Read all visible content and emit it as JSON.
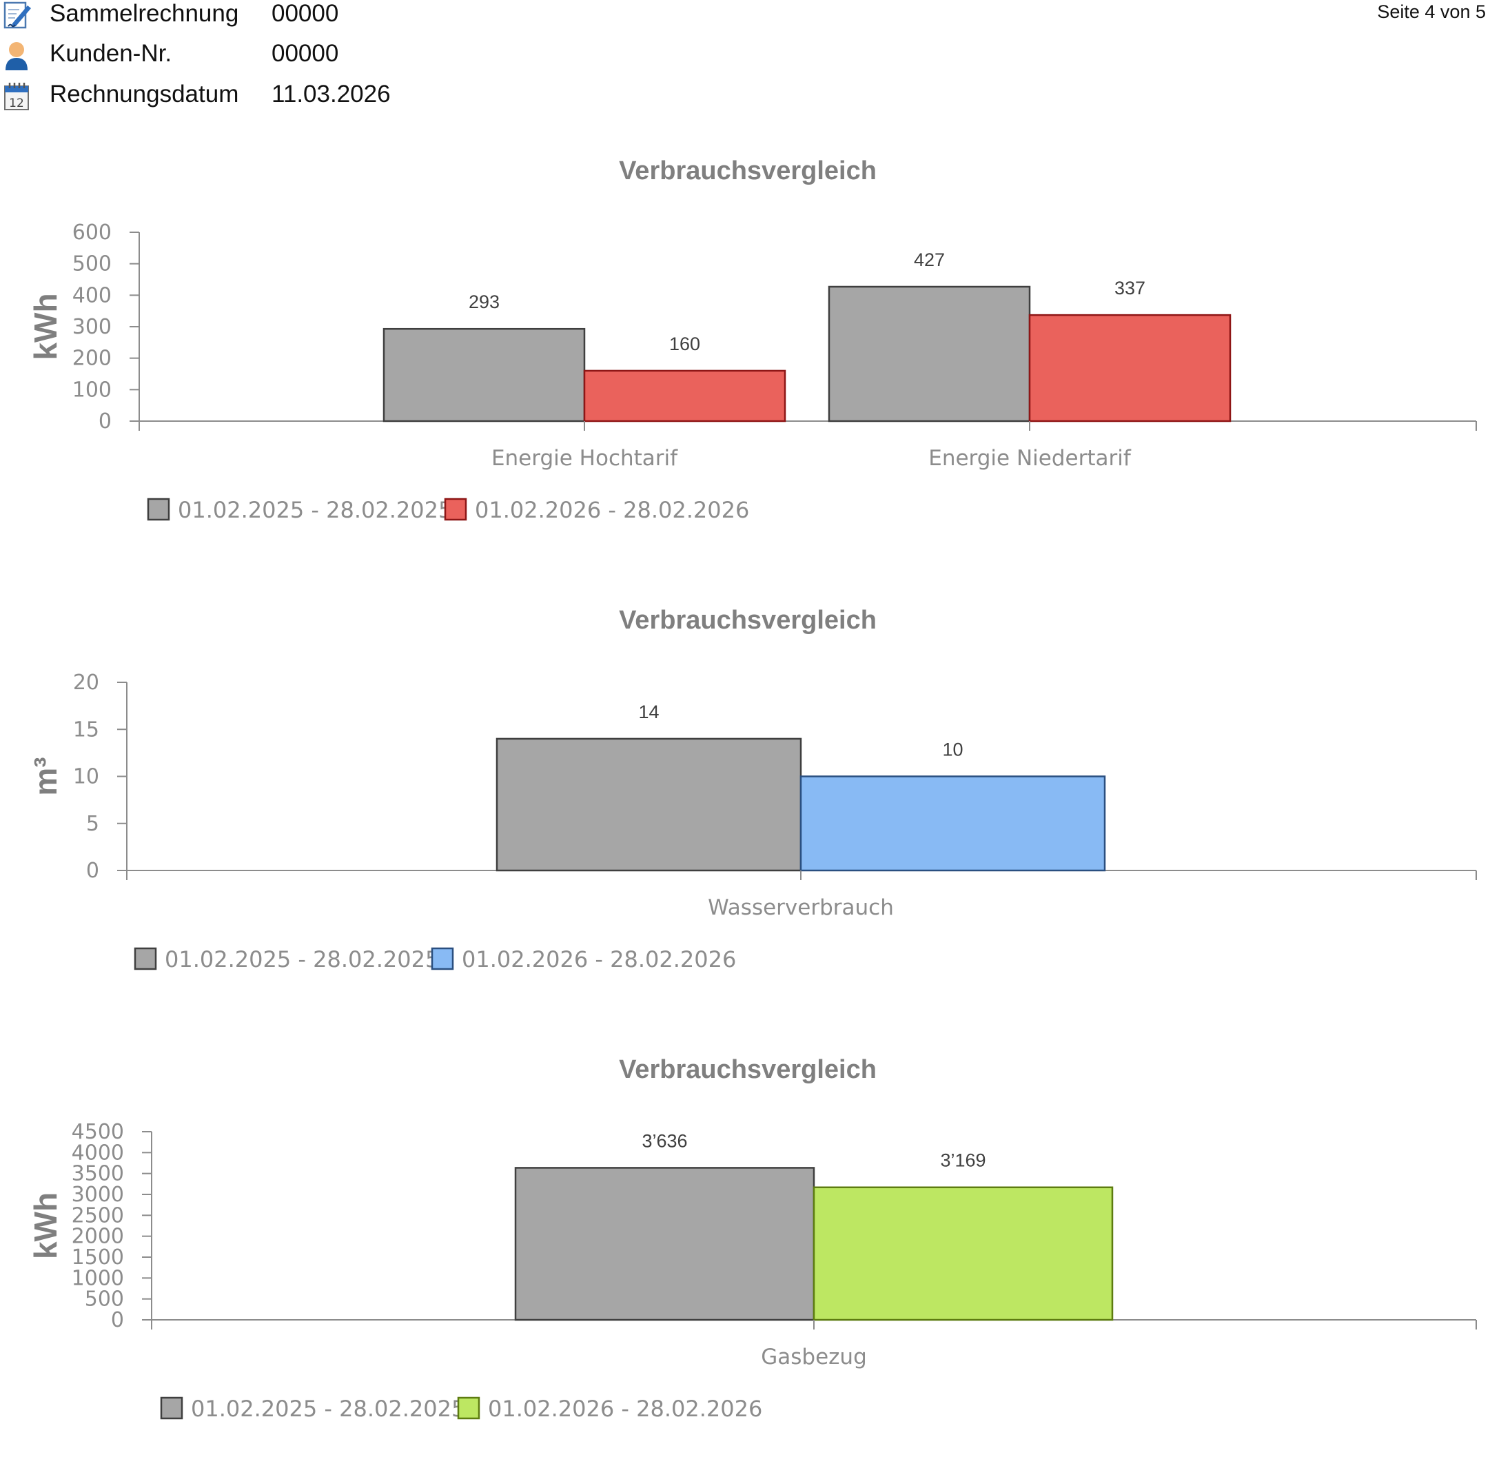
{
  "header": {
    "rows": [
      {
        "label": "Sammelrechnung",
        "value": "00000",
        "icon": "edit-document-icon"
      },
      {
        "label": "Kunden-Nr.",
        "value": "00000",
        "icon": "user-icon"
      },
      {
        "label": "Rechnungsdatum",
        "value": "11.03.2026",
        "icon": "calendar-icon"
      }
    ],
    "page": "Seite 4 von 5"
  },
  "chart_data": [
    {
      "type": "bar",
      "title": "Verbrauchsvergleich",
      "ylabel": "kWh",
      "xlabel": "",
      "ylim": [
        0,
        600
      ],
      "yticks": [
        0,
        100,
        200,
        300,
        400,
        500,
        600
      ],
      "categories": [
        "Energie Hochtarif",
        "Energie Niedertarif"
      ],
      "series": [
        {
          "name": "01.02.2025 - 28.02.2025",
          "values": [
            293,
            427
          ],
          "labels": [
            "293",
            "427"
          ],
          "color": "#a6a6a6",
          "stroke": "#3f3f3f"
        },
        {
          "name": "01.02.2026 - 28.02.2026",
          "values": [
            160,
            337
          ],
          "labels": [
            "160",
            "337"
          ],
          "color": "#ea625c",
          "stroke": "#8e1616"
        }
      ],
      "legend": "bottom-left"
    },
    {
      "type": "bar",
      "title": "Verbrauchsvergleich",
      "ylabel": "m³",
      "xlabel": "",
      "ylim": [
        0,
        20
      ],
      "yticks": [
        0,
        5,
        10,
        15,
        20
      ],
      "categories": [
        "Wasserverbrauch"
      ],
      "series": [
        {
          "name": "01.02.2025 - 28.02.2025",
          "values": [
            14
          ],
          "labels": [
            "14"
          ],
          "color": "#a6a6a6",
          "stroke": "#3f3f3f"
        },
        {
          "name": "01.02.2026 - 28.02.2026",
          "values": [
            10
          ],
          "labels": [
            "10"
          ],
          "color": "#88baf4",
          "stroke": "#2a4f80"
        }
      ],
      "legend": "bottom-left"
    },
    {
      "type": "bar",
      "title": "Verbrauchsvergleich",
      "ylabel": "kWh",
      "xlabel": "",
      "ylim": [
        0,
        4500
      ],
      "yticks": [
        0,
        500,
        1000,
        1500,
        2000,
        2500,
        3000,
        3500,
        4000,
        4500
      ],
      "categories": [
        "Gasbezug"
      ],
      "series": [
        {
          "name": "01.02.2025 - 28.02.2025",
          "values": [
            3636
          ],
          "labels": [
            "3’636"
          ],
          "color": "#a6a6a6",
          "stroke": "#3f3f3f"
        },
        {
          "name": "01.02.2026 - 28.02.2026",
          "values": [
            3169
          ],
          "labels": [
            "3’169"
          ],
          "color": "#bde762",
          "stroke": "#5d7c10"
        }
      ],
      "legend": "bottom-left"
    }
  ]
}
